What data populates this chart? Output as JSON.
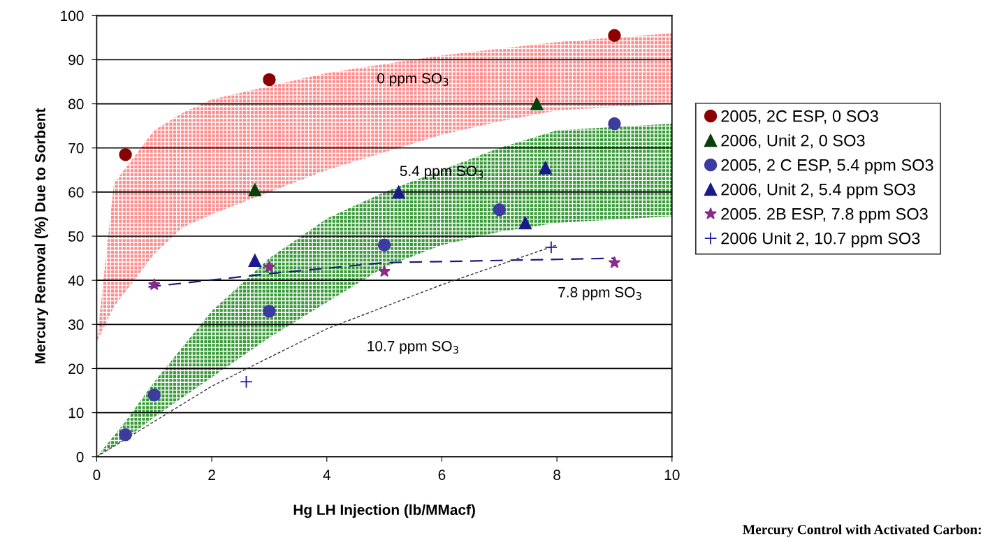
{
  "chart_data": {
    "type": "scatter",
    "xlabel": "Hg LH Injection (lb/MMacf)",
    "ylabel": "Mercury Removal (%) Due to Sorbent",
    "xlim": [
      0,
      10
    ],
    "xticks": [
      0,
      2,
      4,
      6,
      8,
      10
    ],
    "ylim": [
      0,
      100
    ],
    "yticks": [
      0,
      10,
      20,
      30,
      40,
      50,
      60,
      70,
      80,
      90,
      100
    ],
    "grid": "y",
    "legend": "right",
    "series": [
      {
        "type": "line",
        "color": "#ff8c8c",
        "x": [
          0,
          0.3,
          1,
          1.5,
          2,
          3,
          4,
          5,
          6,
          7,
          8,
          10
        ],
        "values": [
          null,
          null,
          null,
          null,
          null,
          null,
          null,
          null,
          null,
          null,
          null,
          null
        ],
        "upper": [
          26,
          62,
          74,
          78,
          81,
          84,
          87,
          89,
          91,
          92.5,
          94,
          96
        ],
        "lower": [
          26,
          34,
          46,
          52,
          55,
          60,
          65,
          69,
          73,
          76,
          78.5,
          80
        ]
      },
      {
        "type": "line",
        "color": "#3a9a3a",
        "x": [
          0,
          0.5,
          1,
          2,
          3,
          4,
          5,
          6,
          7,
          8,
          10
        ],
        "values": [
          null,
          null,
          null,
          null,
          null,
          null,
          null,
          null,
          null,
          null,
          null
        ],
        "upper": [
          0,
          8,
          17,
          33,
          45,
          54,
          60,
          65,
          70,
          74,
          75.5
        ],
        "lower": [
          0,
          4,
          9,
          18,
          27,
          35,
          43,
          48,
          51,
          53,
          54.5
        ]
      },
      {
        "type": "line",
        "color": "#1a1a80",
        "line_style": "dashed",
        "x": [
          0.9,
          3,
          5,
          7,
          9
        ],
        "values": [
          38.5,
          41.5,
          44,
          44.5,
          45
        ]
      },
      {
        "type": "line",
        "color": "#333333",
        "line_style": "dotted",
        "x": [
          0,
          2,
          4,
          6,
          8
        ],
        "values": [
          0,
          16,
          29,
          39,
          48
        ]
      },
      {
        "name": "2005, 2C ESP, 0 SO3",
        "color": "#8b0000",
        "marker": "circle",
        "x": [
          0.5,
          3,
          9
        ],
        "values": [
          68.5,
          85.5,
          95.5
        ]
      },
      {
        "name": "2006, Unit 2, 0 SO3",
        "color": "#0a400a",
        "marker": "triangle",
        "x": [
          2.75,
          7.65
        ],
        "values": [
          60.5,
          80
        ]
      },
      {
        "name": "2005, 2 C ESP, 5.4 ppm SO3",
        "color": "#3c3ca0",
        "marker": "circle",
        "x": [
          0.5,
          1,
          3,
          5,
          7,
          9
        ],
        "values": [
          5,
          14,
          33,
          48,
          56,
          75.5
        ]
      },
      {
        "name": "2006, Unit 2, 5.4 ppm SO3",
        "color": "#1a1a8c",
        "marker": "triangle",
        "x": [
          2.75,
          5.25,
          7.45,
          7.8
        ],
        "values": [
          44.5,
          60,
          53,
          65.5
        ]
      },
      {
        "name": "2005. 2B ESP, 7.8 ppm SO3",
        "color": "#8b2a8b",
        "marker": "star",
        "x": [
          1,
          3,
          5,
          9
        ],
        "values": [
          39,
          43,
          42,
          44
        ]
      },
      {
        "name": "2006 Unit 2, 10.7 ppm SO3",
        "color": "#1a1a9c",
        "marker": "cross",
        "x": [
          2.6,
          7.9
        ],
        "values": [
          17,
          47.5
        ]
      }
    ],
    "annotations": [
      "0 ppm SO$_{3}$",
      "5.4 ppm SO$_{3}$",
      "7.8 ppm SO$_{3}$",
      "10.7 ppm SO$_{3}$",
      "Mercury Control with Activated Carbon:"
    ]
  }
}
